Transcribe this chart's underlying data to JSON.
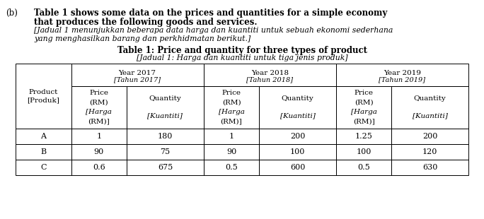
{
  "label_b": "(b)",
  "intro_line1": "Table 1 shows some data on the prices and quantities for a simple economy",
  "intro_line2": "that produces the following goods and services.",
  "intro_italic1": "[Jadual 1 menunjukkan beberapa data harga dan kuantiti untuk sebuah ekonomi sederhana",
  "intro_italic2": "yang menghasilkan barang dan perkhidmatan berikut.]",
  "table_title_bold": "Table 1: Price and quantity for three types of product",
  "table_title_italic": "[Jadual 1: Harga dan kuantiti untuk tiga jenis produk]",
  "data_rows": [
    [
      "A",
      "1",
      "180",
      "1",
      "200",
      "1.25",
      "200"
    ],
    [
      "B",
      "90",
      "75",
      "90",
      "100",
      "100",
      "120"
    ],
    [
      "C",
      "0.6",
      "675",
      "0.5",
      "600",
      "0.5",
      "630"
    ]
  ],
  "text_color": "#000000",
  "bg_color": "#ffffff",
  "font_family": "DejaVu Serif",
  "intro_fontsize": 8.5,
  "italic_fontsize": 7.8,
  "title_fontsize": 8.5,
  "table_fontsize": 7.5
}
